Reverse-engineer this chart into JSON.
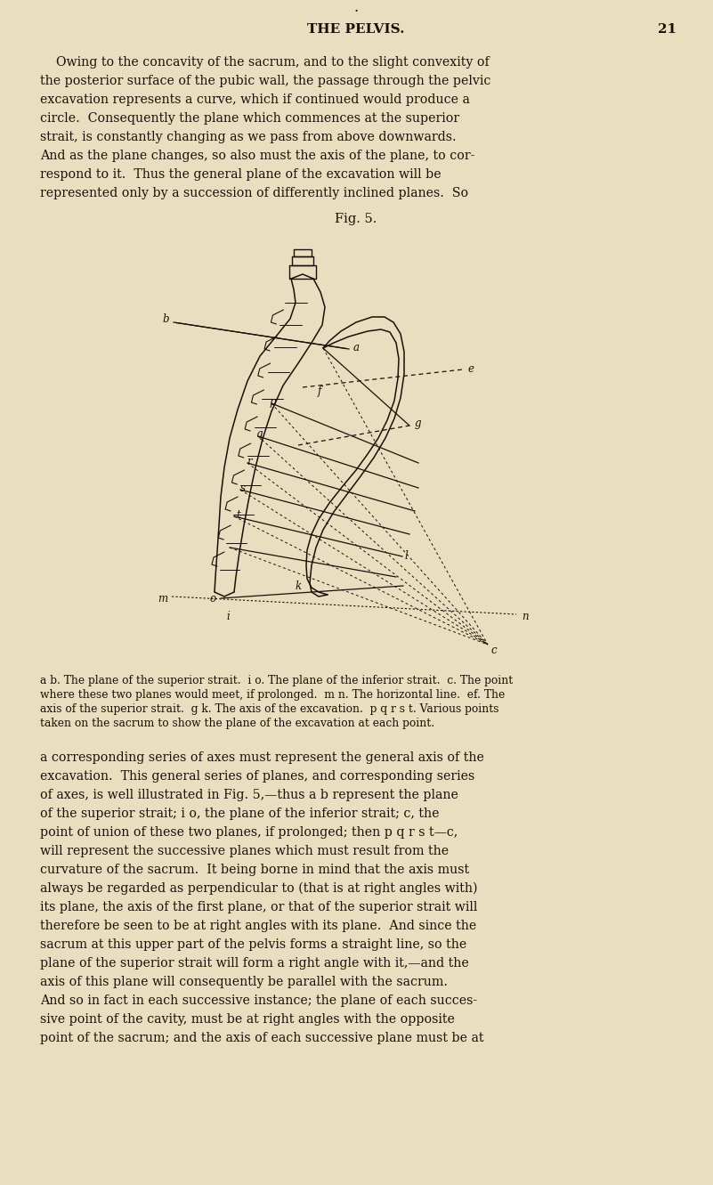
{
  "background_color": "#e8dfc0",
  "page_bg": "#e8dfc0",
  "text_color": "#1a1008",
  "header_text": "THE PELVIS.",
  "page_number": "21",
  "header_fontsize": 11,
  "body_fontsize": 10.5,
  "fig_label": "Fig. 5.",
  "caption_text": "a b. The plane of the superior strait.  i o. The plane of the inferior strait.  c. The point\nwhere these two planes would meet, if prolonged.  m n. The horizontal line.  ef. The\naxis of the superior strait.  g k. The axis of the excavation.  p q r s t. Various points\ntaken on the sacrum to show the plane of the excavation at each point.",
  "paragraph1": "    Owing to the concavity of the sacrum, and to the slight convexity of\nthe posterior surface of the pubic wall, the passage through the pelvic\nexcavation represents a curve, which if continued would produce a\ncircle.  Consequently the plane which commences at the superior\nstrait, is constantly changing as we pass from above downwards.\nAnd as the plane changes, so also must the axis of the plane, to cor-\nrespond to it.  Thus the general plane of the excavation will be\nrepresented only by a succession of differently inclined planes.  So",
  "paragraph2": "a corresponding series of axes must represent the general axis of the\nexcavation.  This general series of planes, and corresponding series\nof axes, is well illustrated in Fig. 5,—thus a b represent the plane\nof the superior strait; i o, the plane of the inferior strait; c, the\npoint of union of these two planes, if prolonged; then p q r s t—c,\nwill represent the successive planes which must result from the\ncurvature of the sacrum.  It being borne in mind that the axis must\nalways be regarded as perpendicular to (that is at right angles with)\nits plane, the axis of the first plane, or that of the superior strait will\ntherefore be seen to be at right angles with its plane.  And since the\nsacrum at this upper part of the pelvis forms a straight line, so the\nplane of the superior strait will form a right angle with it,—and the\naxis of this plane will consequently be parallel with the sacrum.\nAnd so in fact in each successive instance; the plane of each succes-\nsive point of the cavity, must be at right angles with the opposite\npoint of the sacrum; and the axis of each successive plane must be at"
}
